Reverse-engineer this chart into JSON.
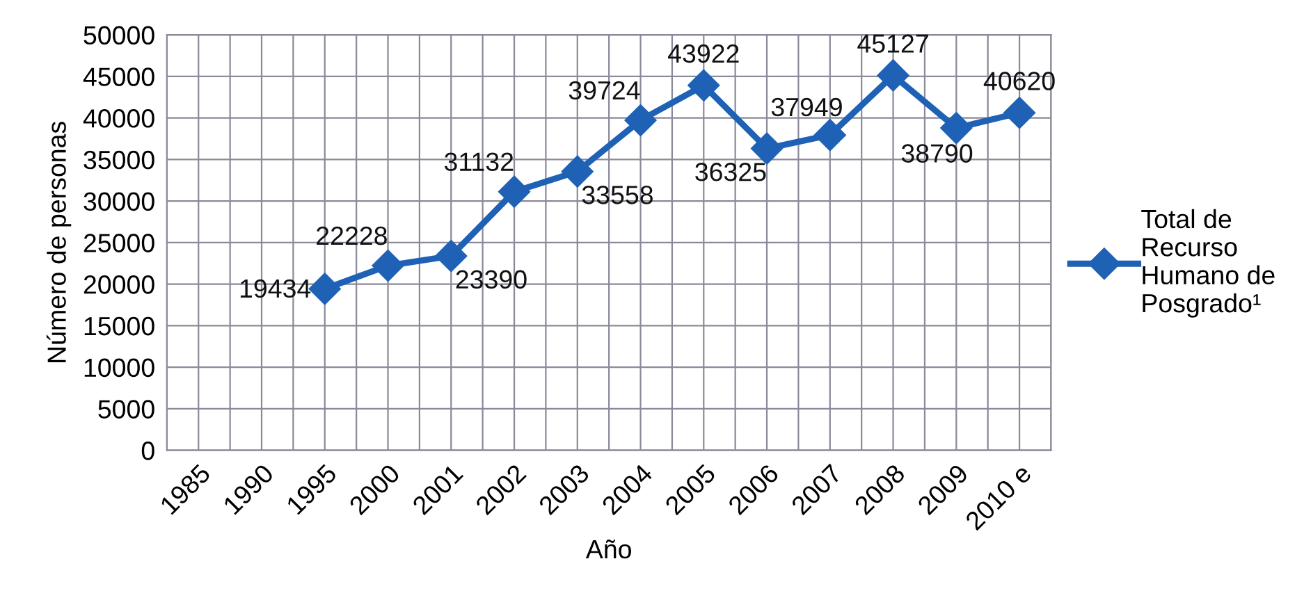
{
  "chart_data": {
    "type": "line",
    "xlabel": "Año",
    "ylabel": "Número de personas",
    "categories": [
      "1985",
      "1990",
      "1995",
      "2000",
      "2001",
      "2002",
      "2003",
      "2004",
      "2005",
      "2006",
      "2007",
      "2008",
      "2009",
      "2010 e"
    ],
    "series": [
      {
        "name": "Total de Recurso Humano de Posgrado¹",
        "color": "#1f62b5",
        "values": [
          null,
          null,
          19434,
          22228,
          23390,
          31132,
          33558,
          39724,
          43922,
          36325,
          37949,
          45127,
          38790,
          40620
        ]
      }
    ],
    "ylim": [
      0,
      50000
    ],
    "yticks": [
      0,
      5000,
      10000,
      15000,
      20000,
      25000,
      30000,
      35000,
      40000,
      45000,
      50000
    ],
    "grid": true,
    "legend": "right",
    "marker": "diamond",
    "line_style": "solid",
    "data_labels": true
  }
}
